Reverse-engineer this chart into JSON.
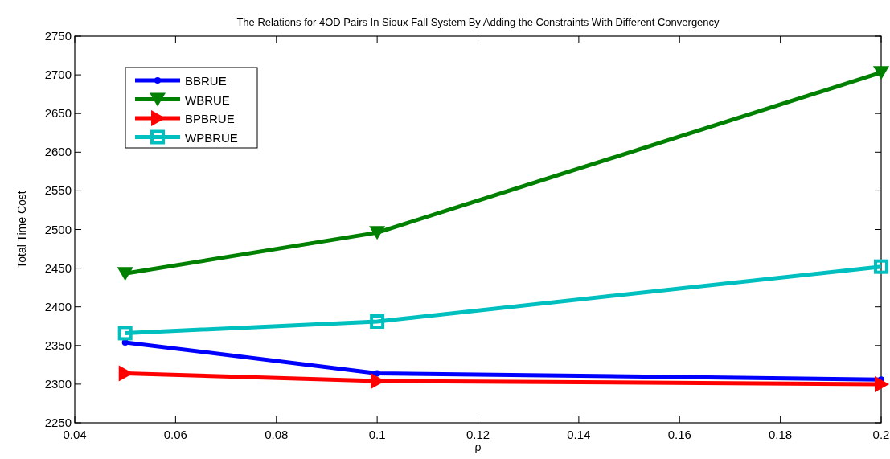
{
  "chart_data": {
    "type": "line",
    "title": "The Relations for 4OD Pairs In Sioux Fall System By Adding the Constraints With Different Convergency",
    "xlabel": "ρ",
    "ylabel": "Total Time Cost",
    "x": [
      0.05,
      0.1,
      0.2
    ],
    "xlim": [
      0.04,
      0.2
    ],
    "xticks": [
      0.04,
      0.06,
      0.08,
      0.1,
      0.12,
      0.14,
      0.16,
      0.18,
      0.2
    ],
    "ylim": [
      2250,
      2750
    ],
    "yticks": [
      2250,
      2300,
      2350,
      2400,
      2450,
      2500,
      2550,
      2600,
      2650,
      2700,
      2750
    ],
    "grid": false,
    "legend": "top left",
    "line_style": "solid",
    "series": [
      {
        "name": "BBRUE",
        "color": "#0000ff",
        "marker": "circle",
        "values": [
          2354,
          2314,
          2306
        ]
      },
      {
        "name": "WBRUE",
        "color": "#008000",
        "marker": "triangle-down",
        "values": [
          2443,
          2496,
          2703
        ]
      },
      {
        "name": "BPBRUE",
        "color": "#ff0000",
        "marker": "triangle-right",
        "values": [
          2314,
          2304,
          2300
        ]
      },
      {
        "name": "WPBRUE",
        "color": "#00bfbf",
        "marker": "square",
        "values": [
          2366,
          2381,
          2452
        ]
      }
    ]
  }
}
